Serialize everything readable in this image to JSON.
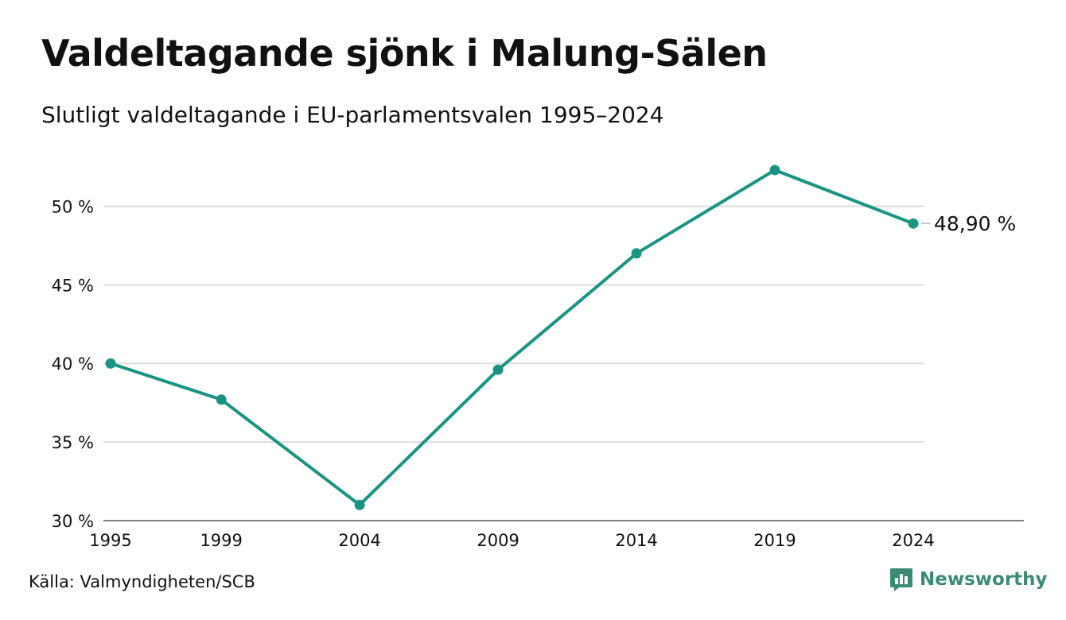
{
  "header": {
    "title": "Valdeltagande sjönk i Malung-Sälen",
    "subtitle": "Slutligt valdeltagande i EU-parlamentsvalen 1995–2024"
  },
  "footer": {
    "source": "Källa: Valmyndigheten/SCB",
    "brand": "Newsworthy",
    "brand_icon": "bar-chart-bubble-icon"
  },
  "colors": {
    "line": "#1a9482",
    "grid": "#dddddd",
    "brand": "#3a8a76"
  },
  "chart_data": {
    "type": "line",
    "x": [
      1995,
      1999,
      2004,
      2009,
      2014,
      2019,
      2024
    ],
    "x_tick_labels": [
      "1995",
      "1999",
      "2004",
      "2009",
      "2014",
      "2019",
      "2024"
    ],
    "series": [
      {
        "values": [
          40.0,
          37.7,
          31.0,
          39.6,
          47.0,
          52.3,
          48.9
        ]
      }
    ],
    "ylim": [
      30,
      52.5
    ],
    "y_ticks": [
      30,
      35,
      40,
      45,
      50
    ],
    "y_tick_labels": [
      "30 %",
      "35 %",
      "40 %",
      "45 %",
      "50 %"
    ],
    "end_label": "48,90 %",
    "grid": "horizontal",
    "xlabel": "",
    "ylabel": ""
  }
}
